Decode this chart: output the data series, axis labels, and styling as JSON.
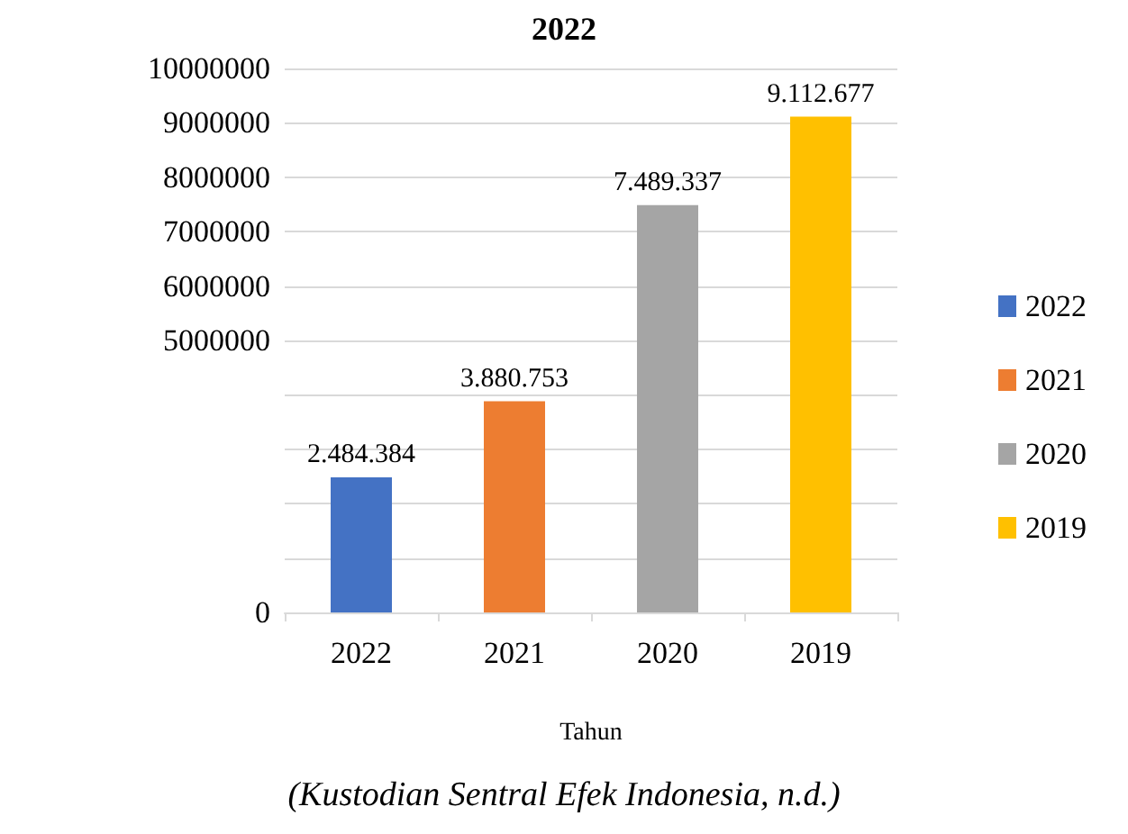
{
  "chart_data": {
    "type": "bar",
    "title": "2022",
    "xlabel": "Tahun",
    "annotations": [
      "(Kustodian Sentral Efek Indonesia, n.d.)"
    ],
    "categories": [
      "2022",
      "2021",
      "2020",
      "2019"
    ],
    "series": [
      {
        "name": "2022",
        "color": "#4472c4",
        "values": [
          2484384,
          null,
          null,
          null
        ],
        "value_labels": [
          "2.484.384",
          null,
          null,
          null
        ]
      },
      {
        "name": "2021",
        "color": "#ed7d31",
        "values": [
          null,
          3880753,
          null,
          null
        ],
        "value_labels": [
          null,
          "3.880.753",
          null,
          null
        ]
      },
      {
        "name": "2020",
        "color": "#a5a5a5",
        "values": [
          null,
          null,
          7489337,
          null
        ],
        "value_labels": [
          null,
          null,
          "7.489.337",
          null
        ]
      },
      {
        "name": "2019",
        "color": "#ffc000",
        "values": [
          null,
          null,
          null,
          9112677
        ],
        "value_labels": [
          null,
          null,
          null,
          "9.112.677"
        ]
      }
    ],
    "ylim": [
      0,
      10000000
    ],
    "yticks": [
      0,
      {
        "value": 1000000,
        "label": null
      },
      {
        "value": 2000000,
        "label": null
      },
      {
        "value": 3000000,
        "label": null
      },
      {
        "value": 4000000,
        "label": null
      },
      5000000,
      6000000,
      7000000,
      8000000,
      9000000,
      10000000
    ],
    "grid": "y",
    "legend": "right"
  }
}
